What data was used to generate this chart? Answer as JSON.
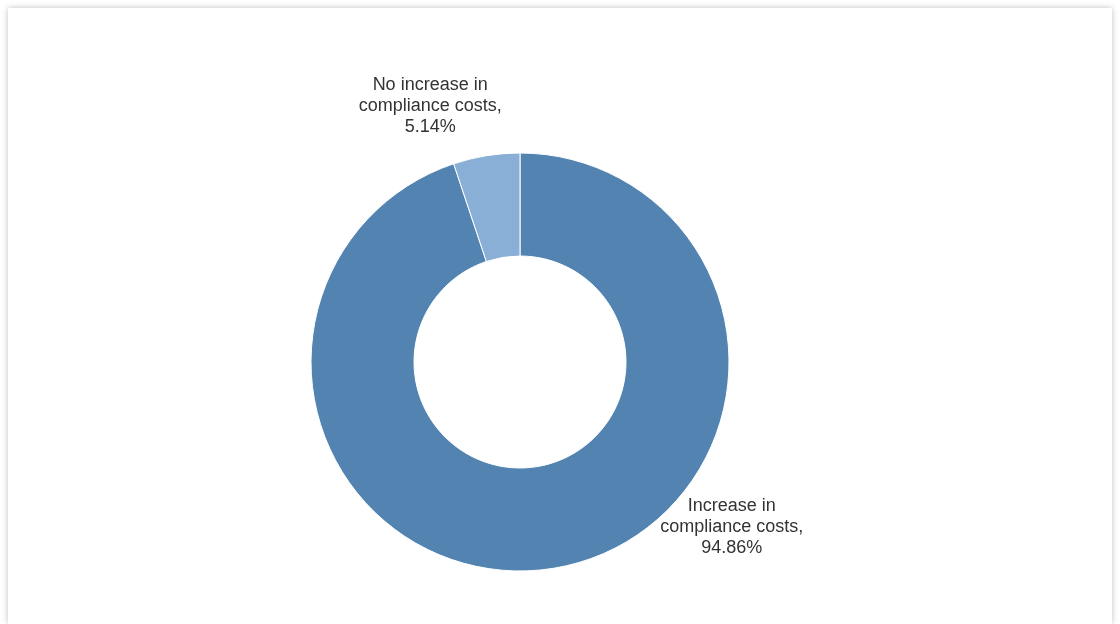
{
  "chart_data": {
    "type": "donut",
    "categories": [
      "Increase in compliance costs",
      "No increase in compliance costs"
    ],
    "values": [
      94.86,
      5.14
    ],
    "colors": [
      "#5384b1",
      "#8aafd6"
    ],
    "value_labels": [
      ", 94.86%",
      ", 5.14%"
    ],
    "legend": false
  }
}
